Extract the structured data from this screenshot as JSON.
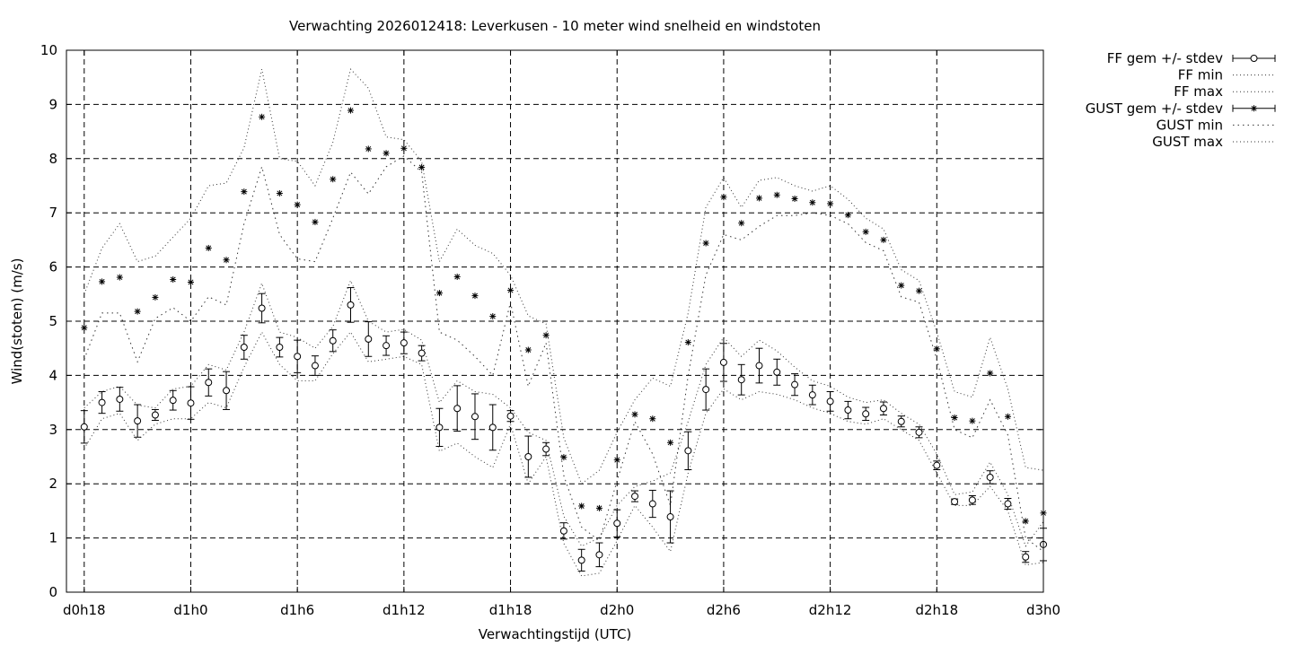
{
  "chart_data": {
    "type": "line",
    "title": "Verwachting 2026012418: Leverkusen - 10 meter wind snelheid en windstoten",
    "xlabel": "Verwachtingstijd (UTC)",
    "ylabel": "Wind(stoten) (m/s)",
    "xlim": [
      17,
      72
    ],
    "ylim": [
      0,
      10
    ],
    "grid": true,
    "grid_style": "dashed",
    "legend_position": "outside-top-right",
    "x_ticks": [
      {
        "x": 18,
        "label": "d0h18"
      },
      {
        "x": 24,
        "label": "d1h0"
      },
      {
        "x": 30,
        "label": "d1h6"
      },
      {
        "x": 36,
        "label": "d1h12"
      },
      {
        "x": 42,
        "label": "d1h18"
      },
      {
        "x": 48,
        "label": "d2h0"
      },
      {
        "x": 54,
        "label": "d2h6"
      },
      {
        "x": 60,
        "label": "d2h12"
      },
      {
        "x": 66,
        "label": "d2h18"
      },
      {
        "x": 72,
        "label": "d3h0"
      }
    ],
    "y_ticks": [
      0,
      1,
      2,
      3,
      4,
      5,
      6,
      7,
      8,
      9,
      10
    ],
    "x": [
      18,
      19,
      20,
      21,
      22,
      23,
      24,
      25,
      26,
      27,
      28,
      29,
      30,
      31,
      32,
      33,
      34,
      35,
      36,
      37,
      38,
      39,
      40,
      41,
      42,
      43,
      44,
      45,
      46,
      47,
      48,
      49,
      50,
      51,
      52,
      53,
      54,
      55,
      56,
      57,
      58,
      59,
      60,
      61,
      62,
      63,
      64,
      65,
      66,
      67,
      68,
      69,
      70,
      71,
      72
    ],
    "series": [
      {
        "name": "FF gem +/- stdev",
        "marker": "circle",
        "values": [
          3.05,
          3.5,
          3.56,
          3.16,
          3.27,
          3.54,
          3.49,
          3.87,
          3.72,
          4.52,
          5.24,
          4.52,
          4.35,
          4.18,
          4.64,
          5.3,
          4.67,
          4.55,
          4.6,
          4.41,
          3.04,
          3.39,
          3.24,
          3.04,
          3.25,
          2.5,
          2.64,
          1.13,
          0.59,
          0.69,
          1.27,
          1.77,
          1.63,
          1.39,
          2.61,
          3.74,
          4.24,
          3.92,
          4.18,
          4.06,
          3.83,
          3.64,
          3.52,
          3.36,
          3.29,
          3.39,
          3.15,
          2.95,
          2.34,
          1.67,
          1.7,
          2.12,
          1.63,
          0.65,
          0.88
        ],
        "stdev": [
          0.3,
          0.2,
          0.22,
          0.3,
          0.1,
          0.18,
          0.3,
          0.25,
          0.35,
          0.22,
          0.27,
          0.18,
          0.3,
          0.18,
          0.2,
          0.32,
          0.32,
          0.18,
          0.2,
          0.14,
          0.35,
          0.42,
          0.42,
          0.42,
          0.1,
          0.38,
          0.12,
          0.15,
          0.2,
          0.22,
          0.25,
          0.1,
          0.25,
          0.48,
          0.35,
          0.38,
          0.35,
          0.28,
          0.32,
          0.24,
          0.2,
          0.18,
          0.18,
          0.16,
          0.12,
          0.12,
          0.1,
          0.1,
          0.08,
          0.05,
          0.08,
          0.12,
          0.1,
          0.1,
          0.3
        ]
      },
      {
        "name": "FF min",
        "style": "dotted",
        "values": [
          2.65,
          3.2,
          3.3,
          2.8,
          3.1,
          3.2,
          3.2,
          3.5,
          3.4,
          4.15,
          4.8,
          4.2,
          3.9,
          3.9,
          4.4,
          4.8,
          4.25,
          4.3,
          4.35,
          4.2,
          2.6,
          2.75,
          2.5,
          2.3,
          3.1,
          2.0,
          2.5,
          0.9,
          0.3,
          0.35,
          0.95,
          1.6,
          1.2,
          0.75,
          2.2,
          3.3,
          3.75,
          3.55,
          3.7,
          3.65,
          3.55,
          3.4,
          3.3,
          3.15,
          3.1,
          3.2,
          3.0,
          2.8,
          2.2,
          1.6,
          1.6,
          1.95,
          1.5,
          0.5,
          0.55
        ]
      },
      {
        "name": "FF max",
        "style": "dotted",
        "values": [
          3.4,
          3.7,
          3.8,
          3.45,
          3.4,
          3.75,
          3.8,
          4.2,
          4.1,
          4.8,
          5.7,
          4.8,
          4.7,
          4.5,
          4.9,
          5.75,
          5.0,
          4.8,
          4.85,
          4.65,
          3.5,
          3.9,
          3.7,
          3.65,
          3.4,
          2.95,
          2.8,
          1.4,
          0.85,
          1.0,
          1.6,
          1.95,
          2.05,
          2.2,
          3.15,
          4.2,
          4.7,
          4.35,
          4.65,
          4.45,
          4.15,
          3.9,
          3.8,
          3.6,
          3.5,
          3.55,
          3.3,
          3.1,
          2.55,
          1.8,
          1.85,
          2.4,
          1.8,
          0.85,
          1.3
        ]
      },
      {
        "name": "GUST gem +/- stdev",
        "marker": "star",
        "values": [
          4.88,
          5.73,
          5.81,
          5.18,
          5.44,
          5.77,
          5.72,
          6.35,
          6.13,
          7.39,
          8.77,
          7.36,
          7.15,
          6.83,
          7.62,
          8.89,
          8.18,
          8.1,
          8.19,
          7.84,
          5.52,
          5.82,
          5.47,
          5.09,
          5.57,
          4.47,
          4.74,
          2.49,
          1.59,
          1.55,
          2.44,
          3.28,
          3.2,
          2.76,
          4.61,
          6.44,
          7.29,
          6.81,
          7.27,
          7.33,
          7.26,
          7.19,
          7.17,
          6.96,
          6.65,
          6.5,
          5.66,
          5.56,
          4.49,
          3.22,
          3.16,
          4.04,
          3.24,
          1.31,
          1.46
        ]
      },
      {
        "name": "GUST min",
        "style": "dotted",
        "values": [
          4.3,
          5.15,
          5.15,
          4.25,
          5.05,
          5.25,
          5.0,
          5.45,
          5.3,
          6.8,
          7.85,
          6.6,
          6.15,
          6.1,
          6.9,
          7.75,
          7.35,
          7.85,
          8.05,
          7.75,
          4.8,
          4.65,
          4.35,
          4.0,
          5.35,
          3.8,
          4.6,
          2.15,
          1.2,
          0.95,
          2.05,
          3.15,
          2.55,
          1.6,
          4.0,
          5.85,
          6.6,
          6.5,
          6.75,
          6.95,
          6.95,
          7.0,
          6.95,
          6.8,
          6.45,
          6.3,
          5.45,
          5.35,
          4.3,
          3.0,
          2.85,
          3.55,
          2.9,
          1.0,
          0.75
        ]
      },
      {
        "name": "GUST max",
        "style": "dotted",
        "values": [
          5.5,
          6.35,
          6.8,
          6.1,
          6.2,
          6.55,
          6.9,
          7.5,
          7.55,
          8.2,
          9.65,
          8.0,
          7.95,
          7.5,
          8.3,
          9.65,
          9.3,
          8.4,
          8.35,
          7.95,
          6.1,
          6.7,
          6.4,
          6.25,
          5.85,
          5.1,
          4.95,
          2.85,
          2.0,
          2.25,
          2.95,
          3.55,
          3.95,
          3.8,
          5.15,
          7.1,
          7.65,
          7.1,
          7.6,
          7.65,
          7.5,
          7.4,
          7.5,
          7.25,
          6.9,
          6.7,
          5.95,
          5.75,
          4.8,
          3.7,
          3.6,
          4.7,
          3.75,
          2.3,
          2.25
        ]
      }
    ]
  }
}
